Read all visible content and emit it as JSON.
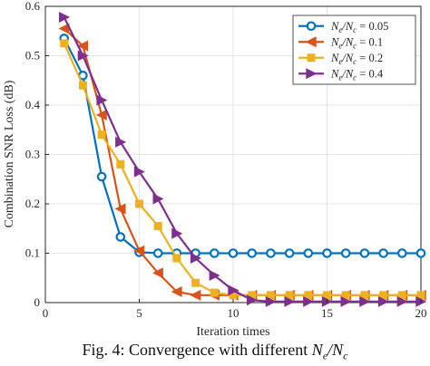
{
  "caption": {
    "label": "Fig. 4:",
    "text": "Convergence with different",
    "math": "Ne/Nc"
  },
  "chart_data": {
    "type": "line",
    "title": "",
    "xlabel": "Iteration times",
    "ylabel": "Combination SNR Loss (dB)",
    "xlim": [
      0,
      20
    ],
    "ylim": [
      0,
      0.6
    ],
    "xticks": [
      0,
      5,
      10,
      15,
      20
    ],
    "yticks": [
      0,
      0.1,
      0.2,
      0.3,
      0.4,
      0.5,
      0.6
    ],
    "grid": true,
    "legend_position": "top-right",
    "x": [
      1,
      2,
      3,
      4,
      5,
      6,
      7,
      8,
      9,
      10,
      11,
      12,
      13,
      14,
      15,
      16,
      17,
      18,
      19,
      20
    ],
    "series": [
      {
        "name": "Ne/Nc = 0.05",
        "color": "#0072BD",
        "marker": "circle",
        "values": [
          0.535,
          0.46,
          0.255,
          0.133,
          0.102,
          0.1,
          0.1,
          0.1,
          0.1,
          0.1,
          0.1,
          0.1,
          0.1,
          0.1,
          0.1,
          0.1,
          0.1,
          0.1,
          0.1,
          0.1
        ]
      },
      {
        "name": "Ne/Nc = 0.1",
        "color": "#D95319",
        "marker": "triangle-left",
        "values": [
          0.555,
          0.52,
          0.38,
          0.19,
          0.105,
          0.06,
          0.022,
          0.015,
          0.015,
          0.015,
          0.015,
          0.015,
          0.015,
          0.015,
          0.015,
          0.015,
          0.015,
          0.015,
          0.015,
          0.015
        ]
      },
      {
        "name": "Ne/Nc = 0.2",
        "color": "#EDB120",
        "marker": "square",
        "values": [
          0.525,
          0.44,
          0.34,
          0.28,
          0.2,
          0.155,
          0.09,
          0.04,
          0.02,
          0.015,
          0.015,
          0.015,
          0.015,
          0.015,
          0.015,
          0.015,
          0.015,
          0.015,
          0.015,
          0.015
        ]
      },
      {
        "name": "Ne/Nc = 0.4",
        "color": "#7E2F8E",
        "marker": "triangle-right",
        "values": [
          0.578,
          0.5,
          0.41,
          0.325,
          0.265,
          0.21,
          0.14,
          0.09,
          0.055,
          0.025,
          0.005,
          0.002,
          0.002,
          0.002,
          0.002,
          0.002,
          0.002,
          0.002,
          0.002,
          0.002
        ]
      }
    ],
    "legend_labels": [
      {
        "base": "N",
        "sub1": "e",
        "slash": "/N",
        "sub2": "c",
        "eq": " = 0.05"
      },
      {
        "base": "N",
        "sub1": "e",
        "slash": "/N",
        "sub2": "c",
        "eq": " = 0.1"
      },
      {
        "base": "N",
        "sub1": "e",
        "slash": "/N",
        "sub2": "c",
        "eq": " = 0.2"
      },
      {
        "base": "N",
        "sub1": "e",
        "slash": "/N",
        "sub2": "c",
        "eq": " = 0.4"
      }
    ]
  }
}
